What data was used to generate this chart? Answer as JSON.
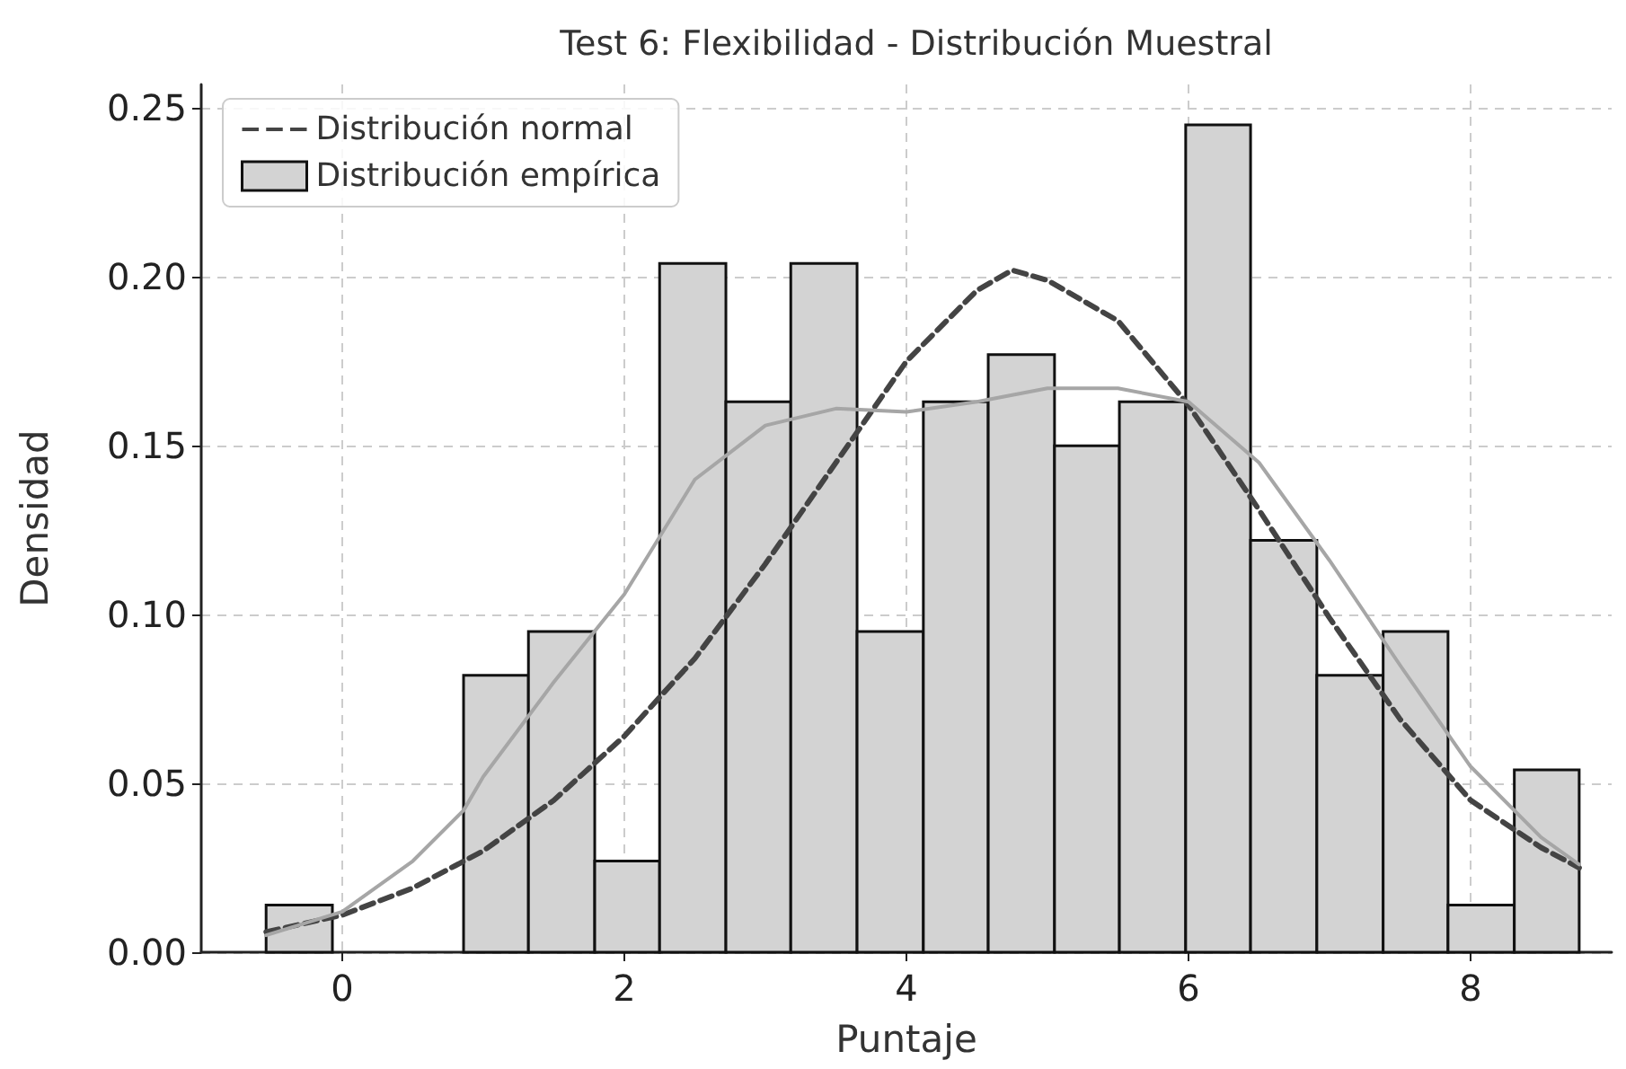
{
  "chart_data": {
    "type": "histogram",
    "title": "Test 6: Flexibilidad - Distribución Muestral",
    "xlabel": "Puntaje",
    "ylabel": "Densidad",
    "bins": [
      -0.54,
      -0.07,
      0.86,
      1.32,
      1.79,
      2.25,
      2.72,
      3.18,
      3.65,
      4.12,
      4.58,
      5.05,
      5.51,
      5.98,
      6.44,
      6.91,
      7.38,
      7.84,
      8.31,
      8.77
    ],
    "series": [
      {
        "name": "Distribución normal",
        "type": "line",
        "line_style": "dashed",
        "color": "#444444",
        "x": [
          -0.54,
          0,
          0.5,
          1,
          1.5,
          2,
          2.5,
          3,
          3.5,
          4,
          4.5,
          4.75,
          5,
          5.5,
          6,
          6.5,
          7,
          7.5,
          8,
          8.5,
          8.77
        ],
        "values": [
          0.006,
          0.011,
          0.019,
          0.03,
          0.045,
          0.064,
          0.087,
          0.115,
          0.145,
          0.175,
          0.196,
          0.202,
          0.199,
          0.187,
          0.162,
          0.131,
          0.099,
          0.069,
          0.045,
          0.031,
          0.025
        ]
      },
      {
        "name": "Distribución empírica",
        "color": "#d3d3d3",
        "values": [
          0.014,
          0,
          0.082,
          0.095,
          0.027,
          0.204,
          0.163,
          0.204,
          0.095,
          0.163,
          0.177,
          0.15,
          0.163,
          0.245,
          0.122,
          0.082,
          0.095,
          0.014,
          0.054
        ]
      },
      {
        "type": "line",
        "line_style": "solid",
        "color": "#a6a6a6",
        "x": [
          -0.54,
          0,
          0.5,
          0.86,
          1,
          1.5,
          2,
          2.5,
          3,
          3.5,
          4,
          4.5,
          5,
          5.5,
          6,
          6.5,
          7,
          7.5,
          8,
          8.5,
          8.77
        ],
        "values": [
          0.005,
          0.012,
          0.027,
          0.042,
          0.052,
          0.08,
          0.106,
          0.14,
          0.156,
          0.161,
          0.16,
          0.163,
          0.167,
          0.167,
          0.163,
          0.145,
          0.116,
          0.085,
          0.055,
          0.034,
          0.026
        ]
      }
    ],
    "xlim": [
      -1,
      9
    ],
    "ylim": [
      0,
      0.257
    ],
    "xticks": [
      0,
      2,
      4,
      6,
      8
    ],
    "yticks": [
      {
        "value": 0,
        "label": "0.00"
      },
      {
        "value": 0.05,
        "label": "0.05"
      },
      {
        "value": 0.1,
        "label": "0.10"
      },
      {
        "value": 0.15,
        "label": "0.15"
      },
      {
        "value": 0.2,
        "label": "0.20"
      },
      {
        "value": 0.25,
        "label": "0.25"
      }
    ],
    "grid": true,
    "legend": "top left"
  }
}
